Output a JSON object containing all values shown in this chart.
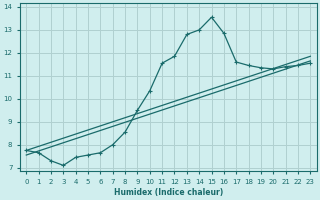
{
  "xlabel": "Humidex (Indice chaleur)",
  "bg_color": "#d0eeee",
  "grid_color": "#b0d0d0",
  "line_color": "#1a6b6b",
  "xlim": [
    -0.5,
    23.5
  ],
  "ylim": [
    6.85,
    14.15
  ],
  "xticks": [
    0,
    1,
    2,
    3,
    4,
    5,
    6,
    7,
    8,
    9,
    10,
    11,
    12,
    13,
    14,
    15,
    16,
    17,
    18,
    19,
    20,
    21,
    22,
    23
  ],
  "yticks": [
    7,
    8,
    9,
    10,
    11,
    12,
    13,
    14
  ],
  "curve_x": [
    0,
    1,
    2,
    3,
    4,
    5,
    6,
    7,
    8,
    9,
    10,
    11,
    12,
    13,
    14,
    15,
    16,
    17,
    18,
    19,
    20,
    21,
    22,
    23
  ],
  "curve_y": [
    7.75,
    7.65,
    7.3,
    7.1,
    7.45,
    7.55,
    7.65,
    8.0,
    8.55,
    9.5,
    10.35,
    11.55,
    11.85,
    12.8,
    13.0,
    13.55,
    12.85,
    11.6,
    11.45,
    11.35,
    11.3,
    11.4,
    11.45,
    11.55
  ],
  "line2_x": [
    0,
    23
  ],
  "line2_y": [
    7.75,
    11.85
  ],
  "line3_x": [
    0,
    23
  ],
  "line3_y": [
    7.55,
    11.65
  ]
}
